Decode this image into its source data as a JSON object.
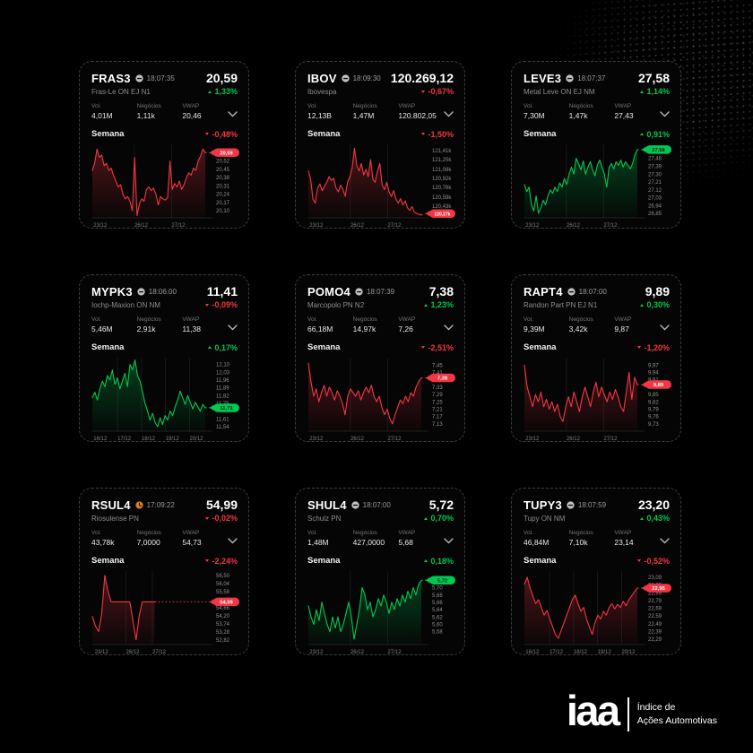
{
  "colors": {
    "up": "#00c853",
    "down": "#f23645",
    "badge_text_up": "#01240e",
    "badge_text_down": "#ffffff",
    "grid_line": "#1e1e1e",
    "tick_text": "#8f8f8f"
  },
  "logo": {
    "text": "iaa",
    "subtitle_line1": "Índice de",
    "subtitle_line2": "Ações Automotivas"
  },
  "stats_labels": {
    "vol": "Vol.",
    "negocios": "Negócios",
    "vwap": "VWAP"
  },
  "week_label": "Semana",
  "cards": [
    {
      "ticker": "FRAS3",
      "status_icon": "minus-circle-icon",
      "time": "18:07:35",
      "price": "20,59",
      "name": "Fras-Le ON EJ N1",
      "change": "1,33%",
      "change_dir": "up",
      "vol": "4,01M",
      "negocios": "1,11k",
      "vwap": "20,46",
      "week_change": "-0,48%",
      "week_dir": "down",
      "chart": {
        "type": "line",
        "trend": "down",
        "y_min": 20.04,
        "y_max": 20.66,
        "badge": "20,59",
        "badge_v": 20.59,
        "extent": 0.94,
        "y_ticks": [
          [
            "20,52",
            20.52
          ],
          [
            "20,45",
            20.45
          ],
          [
            "20,38",
            20.38
          ],
          [
            "20,31",
            20.31
          ],
          [
            "20,24",
            20.24
          ],
          [
            "20,17",
            20.17
          ],
          [
            "20,10",
            20.1
          ]
        ],
        "x_labels": [
          [
            "23/12",
            0.01
          ],
          [
            "26/12",
            0.35
          ],
          [
            "27/12",
            0.66
          ]
        ],
        "values": [
          20.44,
          20.5,
          20.62,
          20.55,
          20.57,
          20.48,
          20.5,
          20.44,
          20.46,
          20.4,
          20.35,
          20.3,
          20.32,
          20.24,
          20.2,
          20.22,
          20.18,
          20.1,
          20.55,
          20.06,
          20.16,
          20.2,
          20.18,
          20.28,
          20.3,
          20.27,
          20.29,
          20.24,
          20.15,
          20.22,
          20.2,
          20.19,
          20.21,
          20.52,
          20.28,
          20.33,
          20.3,
          20.35,
          20.28,
          20.32,
          20.38,
          20.42,
          20.4,
          20.46,
          20.44,
          20.52,
          20.56,
          20.62,
          20.59
        ]
      }
    },
    {
      "ticker": "IBOV",
      "status_icon": "minus-circle-icon",
      "time": "18:09:30",
      "price": "120.269,12",
      "name": "Ibovespa",
      "change": "-0,67%",
      "change_dir": "down",
      "vol": "12,13B",
      "negocios": "1,47M",
      "vwap": "120.802,05",
      "week_change": "-1,50%",
      "week_dir": "down",
      "chart": {
        "type": "line",
        "trend": "down",
        "y_min": 120.22,
        "y_max": 121.52,
        "badge": "120,27k",
        "badge_v": 120.27,
        "extent": 0.94,
        "y_ticks": [
          [
            "121,41k",
            121.41
          ],
          [
            "121,25k",
            121.25
          ],
          [
            "121,08k",
            121.08
          ],
          [
            "120,92k",
            120.92
          ],
          [
            "120,76k",
            120.76
          ],
          [
            "120,59k",
            120.59
          ],
          [
            "120,43k",
            120.43
          ]
        ],
        "x_labels": [
          [
            "23/12",
            0.01
          ],
          [
            "26/12",
            0.35
          ],
          [
            "27/12",
            0.66
          ]
        ],
        "values": [
          121.05,
          120.9,
          120.55,
          120.48,
          120.75,
          120.82,
          120.7,
          120.78,
          120.85,
          120.95,
          120.88,
          120.92,
          120.75,
          120.68,
          120.8,
          120.72,
          120.6,
          120.85,
          120.95,
          121.1,
          121.45,
          121.15,
          121.05,
          121.18,
          120.98,
          121.08,
          120.95,
          121.25,
          120.9,
          120.85,
          121.05,
          121.18,
          120.8,
          120.72,
          120.85,
          120.68,
          120.6,
          120.7,
          120.55,
          120.48,
          120.56,
          120.45,
          120.52,
          120.4,
          120.35,
          120.42,
          120.32,
          120.3,
          120.28,
          120.27
        ]
      }
    },
    {
      "ticker": "LEVE3",
      "status_icon": "minus-circle-icon",
      "time": "18:07:37",
      "price": "27,58",
      "name": "Metal Leve ON EJ NM",
      "change": "1,14%",
      "change_dir": "up",
      "vol": "7,30M",
      "negocios": "1,47k",
      "vwap": "27,43",
      "week_change": "0,91%",
      "week_dir": "up",
      "chart": {
        "type": "line",
        "trend": "up",
        "y_min": 26.8,
        "y_max": 27.64,
        "badge": "27,58",
        "badge_v": 27.58,
        "extent": 0.94,
        "y_ticks": [
          [
            "27,48",
            27.48
          ],
          [
            "27,39",
            27.39
          ],
          [
            "27,30",
            27.3
          ],
          [
            "27,21",
            27.21
          ],
          [
            "27,12",
            27.12
          ],
          [
            "27,03",
            27.03
          ],
          [
            "26,94",
            26.94
          ],
          [
            "26,85",
            26.85
          ]
        ],
        "x_labels": [
          [
            "23/12",
            0.01
          ],
          [
            "26/12",
            0.35
          ],
          [
            "27/12",
            0.66
          ]
        ],
        "values": [
          27.18,
          27.1,
          27.15,
          26.95,
          26.88,
          27.05,
          26.85,
          26.92,
          27.0,
          26.95,
          27.05,
          27.12,
          27.08,
          27.15,
          27.1,
          27.2,
          27.15,
          27.25,
          27.18,
          27.3,
          27.38,
          27.3,
          27.48,
          27.42,
          27.35,
          27.45,
          27.3,
          27.38,
          27.44,
          27.35,
          27.28,
          27.4,
          27.46,
          27.38,
          27.3,
          27.15,
          27.38,
          27.42,
          27.36,
          27.44,
          27.4,
          27.46,
          27.38,
          27.44,
          27.4,
          27.36,
          27.42,
          27.52,
          27.58
        ]
      }
    },
    {
      "ticker": "MYPK3",
      "status_icon": "minus-circle-icon",
      "time": "18:06:00",
      "price": "11,41",
      "name": "Iochp-Maxion ON NM",
      "change": "-0,09%",
      "change_dir": "down",
      "vol": "5,46M",
      "negocios": "2,91k",
      "vwap": "11,38",
      "week_change": "0,17%",
      "week_dir": "up",
      "chart": {
        "type": "line",
        "trend": "up",
        "y_min": 11.5,
        "y_max": 12.16,
        "badge": "11,71",
        "badge_v": 11.71,
        "extent": 0.94,
        "y_ticks": [
          [
            "12,10",
            12.1
          ],
          [
            "12,03",
            12.03
          ],
          [
            "11,96",
            11.96
          ],
          [
            "11,89",
            11.89
          ],
          [
            "11,82",
            11.82
          ],
          [
            "11,75",
            11.75
          ],
          [
            "11,61",
            11.61
          ],
          [
            "11,54",
            11.54
          ]
        ],
        "x_labels": [
          [
            "16/12",
            0.01
          ],
          [
            "17/12",
            0.21
          ],
          [
            "18/12",
            0.41
          ],
          [
            "19/12",
            0.61
          ],
          [
            "20/12",
            0.81
          ]
        ],
        "values": [
          11.8,
          11.85,
          11.78,
          11.88,
          11.95,
          11.9,
          12.0,
          11.96,
          12.05,
          11.92,
          11.98,
          11.88,
          11.95,
          12.02,
          11.9,
          12.1,
          12.05,
          12.14,
          12.0,
          11.95,
          11.85,
          11.75,
          11.68,
          11.6,
          11.66,
          11.58,
          11.54,
          11.62,
          11.56,
          11.64,
          11.6,
          11.68,
          11.64,
          11.72,
          11.78,
          11.86,
          11.8,
          11.74,
          11.82,
          11.76,
          11.7,
          11.76,
          11.72,
          11.68,
          11.74,
          11.71
        ]
      }
    },
    {
      "ticker": "POMO4",
      "status_icon": "minus-circle-icon",
      "time": "18:07:39",
      "price": "7,38",
      "name": "Marcopolo PN N2",
      "change": "1,23%",
      "change_dir": "up",
      "vol": "66,18M",
      "negocios": "14,97k",
      "vwap": "7,26",
      "week_change": "-2,51%",
      "week_dir": "down",
      "chart": {
        "type": "line",
        "trend": "down",
        "y_min": 7.09,
        "y_max": 7.49,
        "badge": "7,38",
        "badge_v": 7.38,
        "extent": 0.94,
        "y_ticks": [
          [
            "7,45",
            7.45
          ],
          [
            "7,41",
            7.41
          ],
          [
            "7,33",
            7.33
          ],
          [
            "7,29",
            7.29
          ],
          [
            "7,25",
            7.25
          ],
          [
            "7,21",
            7.21
          ],
          [
            "7,17",
            7.17
          ],
          [
            "7,13",
            7.13
          ]
        ],
        "x_labels": [
          [
            "23/12",
            0.01
          ],
          [
            "26/12",
            0.35
          ],
          [
            "27/12",
            0.66
          ]
        ],
        "values": [
          7.46,
          7.36,
          7.28,
          7.32,
          7.25,
          7.3,
          7.34,
          7.28,
          7.33,
          7.3,
          7.26,
          7.31,
          7.28,
          7.24,
          7.18,
          7.28,
          7.32,
          7.3,
          7.28,
          7.31,
          7.26,
          7.3,
          7.33,
          7.3,
          7.34,
          7.28,
          7.25,
          7.28,
          7.22,
          7.18,
          7.21,
          7.16,
          7.13,
          7.18,
          7.22,
          7.26,
          7.24,
          7.28,
          7.25,
          7.3,
          7.28,
          7.33,
          7.36,
          7.38
        ]
      }
    },
    {
      "ticker": "RAPT4",
      "status_icon": "minus-circle-icon",
      "time": "18:07:00",
      "price": "9,89",
      "name": "Randon Part PN EJ N1",
      "change": "0,30%",
      "change_dir": "up",
      "vol": "9,39M",
      "negocios": "3,42k",
      "vwap": "9,87",
      "week_change": "-1,20%",
      "week_dir": "down",
      "chart": {
        "type": "line",
        "trend": "down",
        "y_min": 9.7,
        "y_max": 10.0,
        "badge": "9,89",
        "badge_v": 9.89,
        "extent": 0.94,
        "y_ticks": [
          [
            "9,97",
            9.97
          ],
          [
            "9,94",
            9.94
          ],
          [
            "9,91",
            9.91
          ],
          [
            "9,85",
            9.85
          ],
          [
            "9,82",
            9.82
          ],
          [
            "9,79",
            9.79
          ],
          [
            "9,76",
            9.76
          ],
          [
            "9,73",
            9.73
          ]
        ],
        "x_labels": [
          [
            "23/12",
            0.01
          ],
          [
            "26/12",
            0.35
          ],
          [
            "27/12",
            0.66
          ]
        ],
        "values": [
          9.97,
          9.88,
          9.84,
          9.8,
          9.85,
          9.82,
          9.86,
          9.8,
          9.83,
          9.79,
          9.82,
          9.78,
          9.81,
          9.76,
          9.74,
          9.8,
          9.84,
          9.8,
          9.86,
          9.82,
          9.78,
          9.84,
          9.88,
          9.84,
          9.8,
          9.86,
          9.9,
          9.84,
          9.88,
          9.85,
          9.82,
          9.86,
          9.83,
          9.87,
          9.84,
          9.8,
          9.78,
          9.86,
          9.94,
          9.83,
          9.92,
          9.89
        ]
      }
    },
    {
      "ticker": "RSUL4",
      "status_icon": "clock-icon",
      "time": "17:09:22",
      "price": "54,99",
      "name": "Riosulense PN",
      "change": "-0,02%",
      "change_dir": "down",
      "vol": "43,78k",
      "negocios": "7,0000",
      "vwap": "54,73",
      "week_change": "-2,24%",
      "week_dir": "down",
      "chart": {
        "type": "line",
        "trend": "down",
        "y_min": 52.55,
        "y_max": 56.75,
        "badge": "54,99",
        "badge_v": 54.99,
        "extent": 0.52,
        "y_ticks": [
          [
            "56,50",
            56.5
          ],
          [
            "56,04",
            56.04
          ],
          [
            "55,58",
            55.58
          ],
          [
            "54,66",
            54.66
          ],
          [
            "54,20",
            54.2
          ],
          [
            "53,74",
            53.74
          ],
          [
            "53,28",
            53.28
          ],
          [
            "52,82",
            52.82
          ]
        ],
        "x_labels": [
          [
            "23/12",
            0.02
          ],
          [
            "26/12",
            0.28
          ],
          [
            "27/12",
            0.5
          ]
        ],
        "values": [
          54.15,
          53.6,
          53.3,
          54.3,
          56.5,
          55.6,
          55.0,
          54.99,
          54.99,
          54.99,
          54.99,
          54.99,
          54.99,
          53.9,
          52.82,
          54.2,
          54.99,
          54.99,
          54.99,
          54.99,
          54.99
        ]
      }
    },
    {
      "ticker": "SHUL4",
      "status_icon": "minus-circle-icon",
      "time": "18:07:00",
      "price": "5,72",
      "name": "Schulz PN",
      "change": "0,70%",
      "change_dir": "up",
      "vol": "1,48M",
      "negocios": "427,0000",
      "vwap": "5,68",
      "week_change": "0,18%",
      "week_dir": "up",
      "chart": {
        "type": "line",
        "trend": "up",
        "y_min": 5.545,
        "y_max": 5.745,
        "badge": "5,72",
        "badge_v": 5.72,
        "extent": 0.94,
        "y_ticks": [
          [
            "5,70",
            5.7
          ],
          [
            "5,68",
            5.68
          ],
          [
            "5,66",
            5.66
          ],
          [
            "5,64",
            5.64
          ],
          [
            "5,62",
            5.62
          ],
          [
            "5,60",
            5.6
          ],
          [
            "5,58",
            5.58
          ]
        ],
        "x_labels": [
          [
            "23/12",
            0.01
          ],
          [
            "26/12",
            0.35
          ],
          [
            "27/12",
            0.66
          ]
        ],
        "values": [
          5.65,
          5.62,
          5.6,
          5.64,
          5.61,
          5.66,
          5.63,
          5.6,
          5.58,
          5.62,
          5.59,
          5.62,
          5.58,
          5.6,
          5.63,
          5.66,
          5.62,
          5.56,
          5.6,
          5.64,
          5.7,
          5.68,
          5.64,
          5.66,
          5.62,
          5.64,
          5.67,
          5.65,
          5.68,
          5.66,
          5.63,
          5.66,
          5.64,
          5.67,
          5.65,
          5.68,
          5.66,
          5.69,
          5.67,
          5.7,
          5.68,
          5.71,
          5.72
        ]
      }
    },
    {
      "ticker": "TUPY3",
      "status_icon": "minus-circle-icon",
      "time": "18:07:59",
      "price": "23,20",
      "name": "Tupy ON NM",
      "change": "0,43%",
      "change_dir": "up",
      "vol": "46,84M",
      "negocios": "7,10k",
      "vwap": "23,14",
      "week_change": "-0,52%",
      "week_dir": "down",
      "chart": {
        "type": "line",
        "trend": "down",
        "y_min": 22.22,
        "y_max": 23.17,
        "badge": "22,95",
        "badge_v": 22.95,
        "extent": 0.94,
        "y_ticks": [
          [
            "23,09",
            23.09
          ],
          [
            "22,99",
            22.99
          ],
          [
            "22,89",
            22.89
          ],
          [
            "22,79",
            22.79
          ],
          [
            "22,69",
            22.69
          ],
          [
            "22,59",
            22.59
          ],
          [
            "22,49",
            22.49
          ],
          [
            "22,39",
            22.39
          ],
          [
            "22,29",
            22.29
          ]
        ],
        "x_labels": [
          [
            "16/12",
            0.01
          ],
          [
            "17/12",
            0.21
          ],
          [
            "18/12",
            0.41
          ],
          [
            "19/12",
            0.61
          ],
          [
            "20/12",
            0.81
          ]
        ],
        "values": [
          23.0,
          23.09,
          22.95,
          22.85,
          22.75,
          22.8,
          22.7,
          22.6,
          22.66,
          22.55,
          22.45,
          22.35,
          22.3,
          22.4,
          22.5,
          22.6,
          22.7,
          22.8,
          22.86,
          22.75,
          22.65,
          22.7,
          22.55,
          22.45,
          22.35,
          22.5,
          22.6,
          22.55,
          22.65,
          22.6,
          22.7,
          22.75,
          22.68,
          22.74,
          22.7,
          22.78,
          22.72,
          22.8,
          22.85,
          22.9,
          22.95
        ]
      }
    }
  ]
}
